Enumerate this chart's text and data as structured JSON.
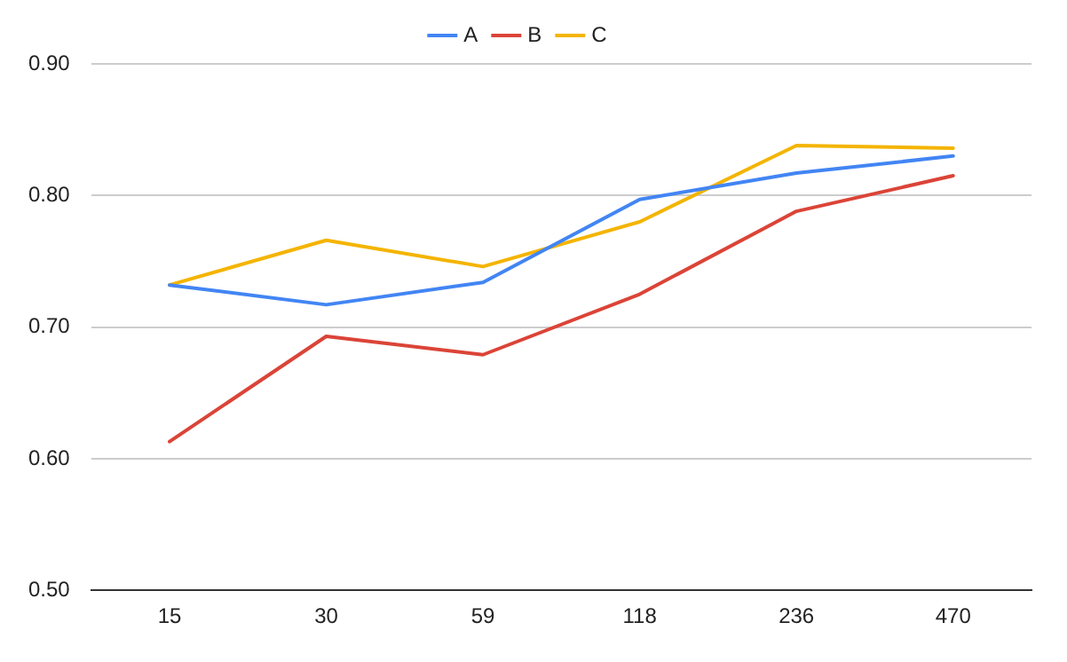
{
  "chart_data": {
    "type": "line",
    "categories": [
      "15",
      "30",
      "59",
      "118",
      "236",
      "470"
    ],
    "series": [
      {
        "name": "A",
        "color": "#4285f4",
        "values": [
          0.732,
          0.717,
          0.734,
          0.797,
          0.817,
          0.83
        ]
      },
      {
        "name": "B",
        "color": "#db4437",
        "values": [
          0.613,
          0.693,
          0.679,
          0.725,
          0.788,
          0.815
        ]
      },
      {
        "name": "C",
        "color": "#f4b400",
        "values": [
          0.732,
          0.766,
          0.746,
          0.78,
          0.838,
          0.836
        ]
      }
    ],
    "ylim": [
      0.5,
      0.9
    ],
    "yticks": [
      {
        "value": 0.5,
        "label": "0.50"
      },
      {
        "value": 0.6,
        "label": "0.60"
      },
      {
        "value": 0.7,
        "label": "0.70"
      },
      {
        "value": 0.8,
        "label": "0.80"
      },
      {
        "value": 0.9,
        "label": "0.90"
      }
    ],
    "grid": "y",
    "legend": "top",
    "marker": "none",
    "line_style": "solid"
  }
}
